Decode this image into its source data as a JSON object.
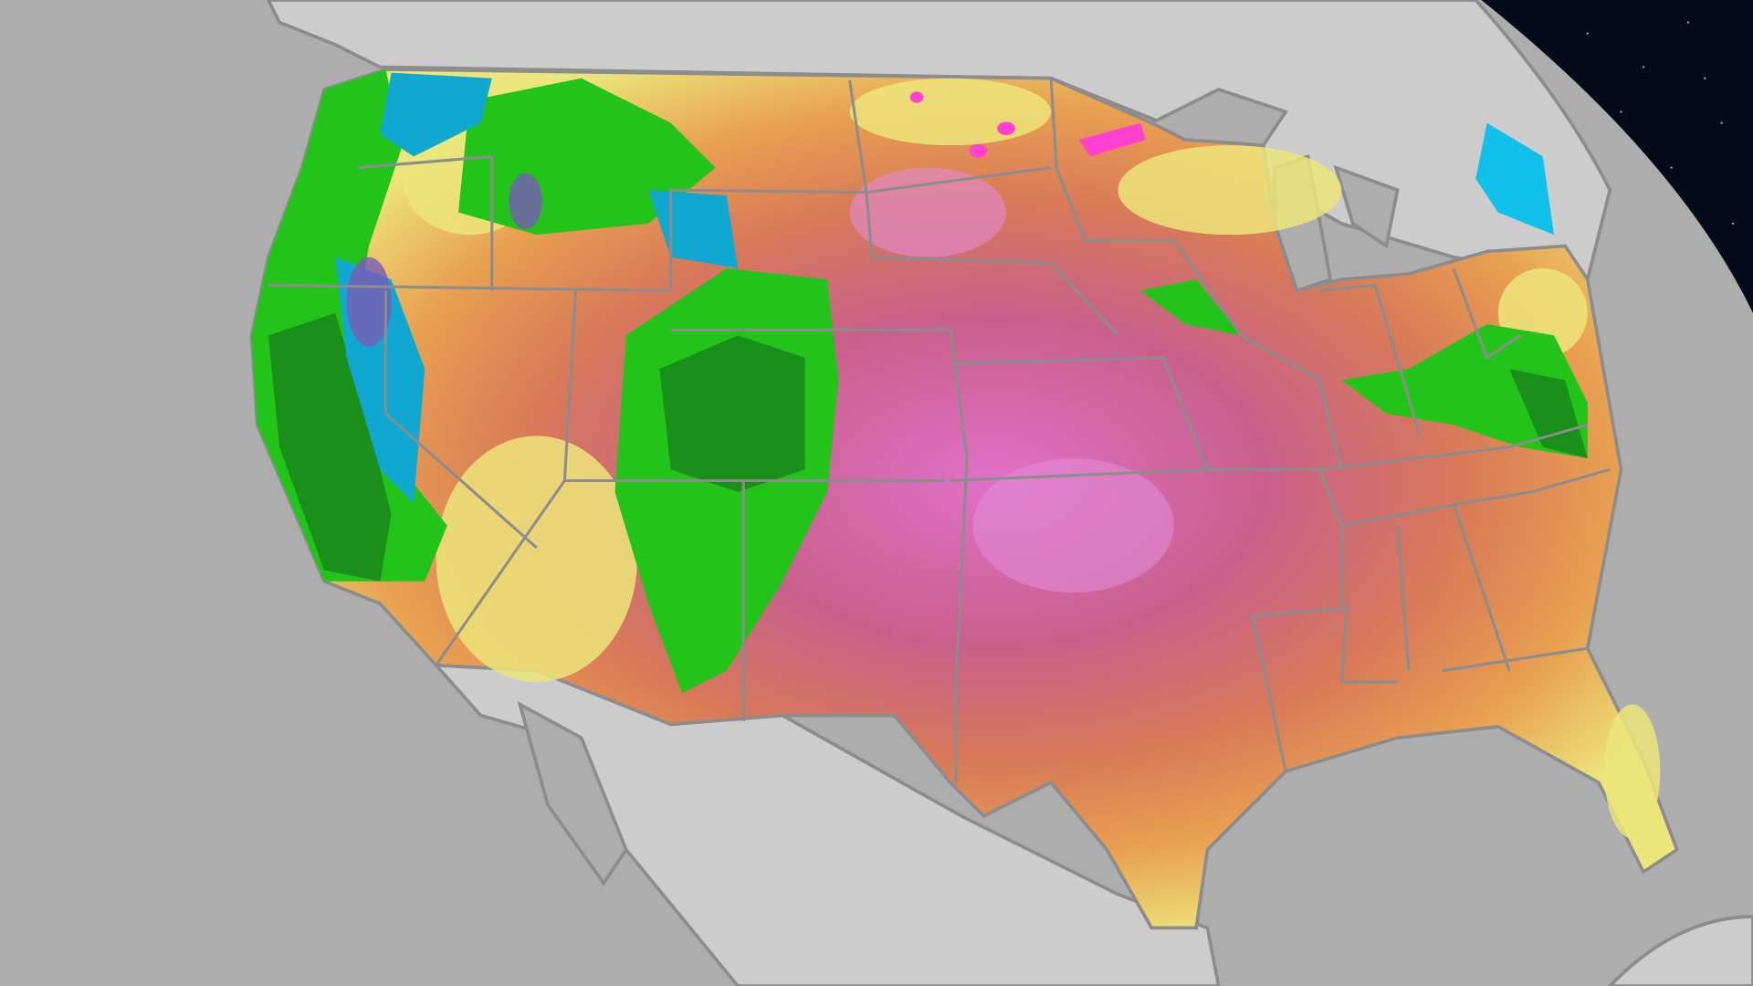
{
  "map": {
    "colors": {
      "ocean": "#adadad",
      "land": "#cccccc",
      "border": "#8c8c8c",
      "space": "#050a18",
      "heat_low": "#ece57a",
      "heat_mid": "#e8944e",
      "heat_high": "#c8607a",
      "heat_max": "#e070c8",
      "precip_light": "#22c41a",
      "precip_heavy": "#1a8f1a",
      "snow_light": "#10c0e8",
      "snow_heavy": "#1090b0",
      "mix": "#7a5ab8",
      "extreme": "#ff40d0"
    }
  }
}
